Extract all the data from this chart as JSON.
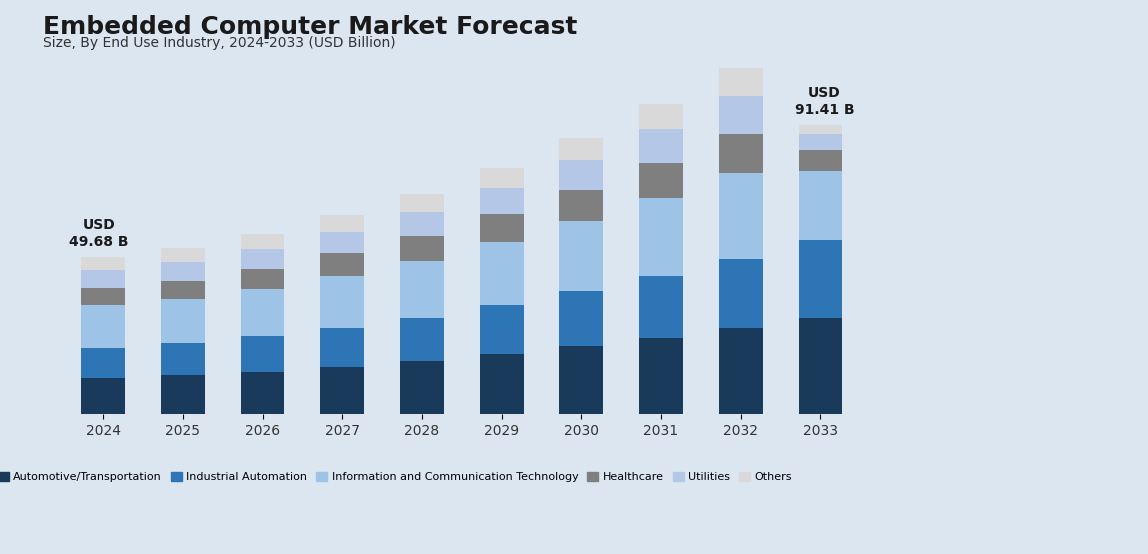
{
  "title": "Embedded Computer Market Forecast",
  "subtitle": "Size, By End Use Industry, 2024-2033 (USD Billion)",
  "years": [
    2024,
    2025,
    2026,
    2027,
    2028,
    2029,
    2030,
    2031,
    2032,
    2033
  ],
  "series": {
    "Automotive/Transportation": [
      11.5,
      12.3,
      13.5,
      15.0,
      16.8,
      19.0,
      21.5,
      24.2,
      27.2,
      30.5
    ],
    "Industrial Automation": [
      9.5,
      10.2,
      11.2,
      12.4,
      13.8,
      15.5,
      17.5,
      19.7,
      22.0,
      24.5
    ],
    "Information and Communication Technology": [
      13.5,
      14.0,
      15.0,
      16.5,
      18.0,
      20.0,
      22.0,
      24.5,
      27.0,
      22.0
    ],
    "Healthcare": [
      5.5,
      5.8,
      6.3,
      7.0,
      7.8,
      8.7,
      9.8,
      11.0,
      12.5,
      6.5
    ],
    "Utilities": [
      5.5,
      5.8,
      6.2,
      6.8,
      7.6,
      8.5,
      9.5,
      10.8,
      12.0,
      5.0
    ],
    "Others": [
      4.18,
      4.5,
      4.9,
      5.4,
      5.8,
      6.3,
      7.0,
      7.8,
      8.8,
      2.91
    ]
  },
  "totals": [
    49.68,
    52.6,
    57.1,
    63.1,
    69.8,
    78.0,
    87.3,
    98.0,
    109.5,
    91.41
  ],
  "colors": {
    "Automotive/Transportation": "#1a3a5c",
    "Industrial Automation": "#2e75b6",
    "Information and Communication Technology": "#9dc3e6",
    "Healthcare": "#7f7f7f",
    "Utilities": "#b4c7e7",
    "Others": "#d9d9d9"
  },
  "annotation_first": "USD\n49.68 B",
  "annotation_last": "USD\n91.41 B",
  "background_color": "#dce6f1",
  "bar_width": 0.55,
  "ylim": [
    0,
    115
  ]
}
